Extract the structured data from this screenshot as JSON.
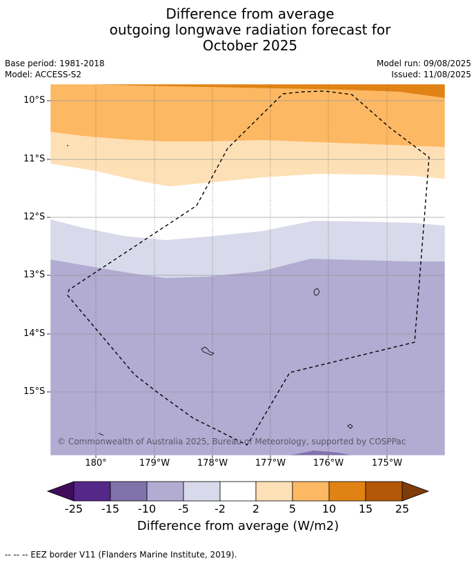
{
  "title": {
    "line1": "Difference from average",
    "line2": "outgoing longwave radiation forecast for",
    "line3": "October 2025"
  },
  "meta": {
    "base_period": "Base period: 1981-2018",
    "model": "Model: ACCESS-S2",
    "model_run": "Model run: 09/08/2025",
    "issued": "Issued: 11/08/2025"
  },
  "map": {
    "lat_labels": [
      "10°S",
      "11°S",
      "12°S",
      "13°S",
      "14°S",
      "15°S"
    ],
    "lon_labels": [
      "180°",
      "179°W",
      "178°W",
      "177°W",
      "176°W",
      "175°W"
    ],
    "copyright": "© Commonwealth of Australia 2025, Bureau of Meteorology, supported by COSPPac",
    "band_colors": {
      "pos_15_10": "#e08214",
      "pos_10_5": "#fdb863",
      "pos_5_2": "#fee0b6",
      "neutral": "#ffffff",
      "neg_2_5": "#d8daeb",
      "neg_5_10": "#b2abd2"
    }
  },
  "colorbar": {
    "labels": [
      "-25",
      "-15",
      "-10",
      "-5",
      "-2",
      "2",
      "5",
      "10",
      "15",
      "25"
    ],
    "colors": [
      "#3f0d5c",
      "#542788",
      "#8073ac",
      "#b2abd2",
      "#d8daeb",
      "#ffffff",
      "#fee0b6",
      "#fdb863",
      "#e08214",
      "#b35806",
      "#7f3b08"
    ],
    "title": "Difference from average (W/m2)"
  },
  "footer": "--  --  -- EEZ border V11 (Flanders Marine Institute, 2019)."
}
